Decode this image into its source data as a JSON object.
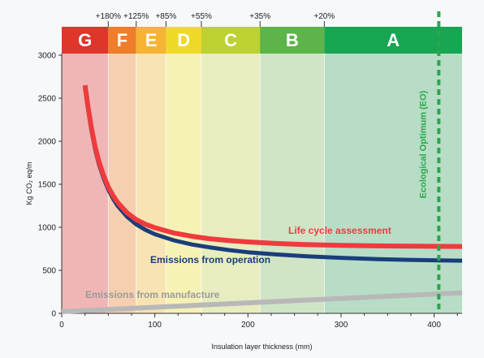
{
  "chart_data": {
    "type": "line",
    "xlabel": "Insulation layer thickness (mm)",
    "ylabel": "Kg CO₂ eq/m",
    "xlim": [
      0,
      430
    ],
    "ylim": [
      0,
      3000
    ],
    "x_ticks": [
      0,
      100,
      200,
      300,
      400
    ],
    "y_ticks": [
      0,
      500,
      1000,
      1500,
      2000,
      2500,
      3000
    ],
    "bands": [
      {
        "label": "G",
        "x_start": 0,
        "x_end": 50,
        "color": "#e0352b",
        "bg": "#f0b6b6"
      },
      {
        "label": "F",
        "x_start": 50,
        "x_end": 80,
        "color": "#ef7d2a",
        "bg": "#f5cfb0"
      },
      {
        "label": "E",
        "x_start": 80,
        "x_end": 112,
        "color": "#f7b334",
        "bg": "#f8e4b2"
      },
      {
        "label": "D",
        "x_start": 112,
        "x_end": 150,
        "color": "#efd928",
        "bg": "#f6f2b5"
      },
      {
        "label": "C",
        "x_start": 150,
        "x_end": 213,
        "color": "#bdd130",
        "bg": "#e7edbf"
      },
      {
        "label": "B",
        "x_start": 213,
        "x_end": 282,
        "color": "#5db448",
        "bg": "#cfe5c6"
      },
      {
        "label": "A",
        "x_start": 282,
        "x_end": 430,
        "color": "#18a653",
        "bg": "#b7ddc6"
      }
    ],
    "percent_markers": [
      {
        "label": "+180%",
        "x": 50
      },
      {
        "label": "+125%",
        "x": 80
      },
      {
        "label": "+85%",
        "x": 112
      },
      {
        "label": "+55%",
        "x": 150
      },
      {
        "label": "+35%",
        "x": 213
      },
      {
        "label": "+20%",
        "x": 282
      }
    ],
    "series": [
      {
        "name": "Life cycle assessment",
        "color": "#ef3b3e",
        "x": [
          25,
          28,
          32,
          36,
          40,
          45,
          50,
          55,
          60,
          70,
          80,
          90,
          100,
          120,
          140,
          160,
          180,
          200,
          230,
          260,
          300,
          340,
          380,
          405,
          430
        ],
        "y": [
          2650,
          2420,
          2150,
          1930,
          1760,
          1600,
          1470,
          1370,
          1290,
          1170,
          1090,
          1035,
          995,
          935,
          895,
          865,
          845,
          830,
          812,
          800,
          790,
          784,
          780,
          778,
          777
        ]
      },
      {
        "name": "Emissions from operation",
        "color": "#1a3e7a",
        "x": [
          25,
          28,
          32,
          36,
          40,
          45,
          50,
          55,
          60,
          70,
          80,
          90,
          100,
          120,
          140,
          160,
          180,
          200,
          230,
          260,
          300,
          340,
          380,
          405,
          430
        ],
        "y": [
          2620,
          2390,
          2120,
          1900,
          1730,
          1570,
          1440,
          1335,
          1250,
          1125,
          1035,
          970,
          920,
          850,
          800,
          765,
          735,
          710,
          685,
          665,
          645,
          630,
          620,
          615,
          612
        ]
      },
      {
        "name": "Emissions from manufacture",
        "color": "#b8b8b8",
        "x": [
          0,
          430
        ],
        "y": [
          20,
          240
        ]
      }
    ],
    "annotations": [
      {
        "text": "Ecological Optimum (EO)",
        "x": 405,
        "color": "#2aa84a"
      }
    ]
  }
}
